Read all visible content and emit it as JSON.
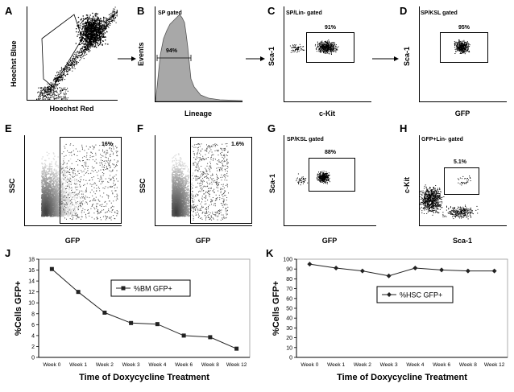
{
  "panels": {
    "A": {
      "letter": "A",
      "xlabel": "Hoechst Red",
      "ylabel": "Hoechst Blue"
    },
    "B": {
      "letter": "B",
      "gate": "SP gated",
      "pct": "94%",
      "xlabel": "Lineage",
      "ylabel": "Events"
    },
    "C": {
      "letter": "C",
      "gate": "SP/Lin- gated",
      "pct": "91%",
      "xlabel": "c-Kit",
      "ylabel": "Sca-1"
    },
    "D": {
      "letter": "D",
      "gate": "SP/KSL gated",
      "pct": "95%",
      "xlabel": "GFP",
      "ylabel": "Sca-1"
    },
    "E": {
      "letter": "E",
      "pct": "16%",
      "xlabel": "GFP",
      "ylabel": "SSC"
    },
    "F": {
      "letter": "F",
      "pct": "1.6%",
      "xlabel": "GFP",
      "ylabel": "SSC"
    },
    "G": {
      "letter": "G",
      "gate": "SP/KSL gated",
      "pct": "88%",
      "xlabel": "GFP",
      "ylabel": "Sca-1"
    },
    "H": {
      "letter": "H",
      "gate": "GFP+Lin- gated",
      "pct": "5.1%",
      "xlabel": "Sca-1",
      "ylabel": "c-Kit"
    },
    "J": {
      "letter": "J"
    },
    "K": {
      "letter": "K"
    }
  },
  "chart_data": [
    {
      "type": "line",
      "panel": "J",
      "categories": [
        "Week 0",
        "Week 1",
        "Week 2",
        "Week 3",
        "Week 4",
        "Week 6",
        "Week 8",
        "Week 12"
      ],
      "series": [
        {
          "name": "%BM GFP+",
          "values": [
            16.2,
            12.0,
            8.2,
            6.3,
            6.1,
            4.0,
            3.7,
            1.6
          ],
          "marker": "square",
          "color": "#222222"
        }
      ],
      "xlabel": "Time of Doxycycline Treatment",
      "ylabel": "%Cells GFP+",
      "ylim": [
        0,
        18
      ],
      "yticks": [
        0,
        2,
        4,
        6,
        8,
        10,
        12,
        14,
        16,
        18
      ],
      "legend": "center-right"
    },
    {
      "type": "line",
      "panel": "K",
      "categories": [
        "Week 0",
        "Week 1",
        "Week 2",
        "Week 3",
        "Week 4",
        "Week 6",
        "Week 8",
        "Week 12"
      ],
      "series": [
        {
          "name": "%HSC GFP+",
          "values": [
            95,
            91,
            88,
            83,
            91,
            89,
            88,
            88
          ],
          "marker": "diamond",
          "color": "#222222"
        }
      ],
      "xlabel": "Time of Doxycycline Treatment",
      "ylabel": "%Cells GFP+",
      "ylim": [
        0,
        100
      ],
      "yticks": [
        0,
        10,
        20,
        30,
        40,
        50,
        60,
        70,
        80,
        90,
        100
      ],
      "legend": "center"
    }
  ]
}
